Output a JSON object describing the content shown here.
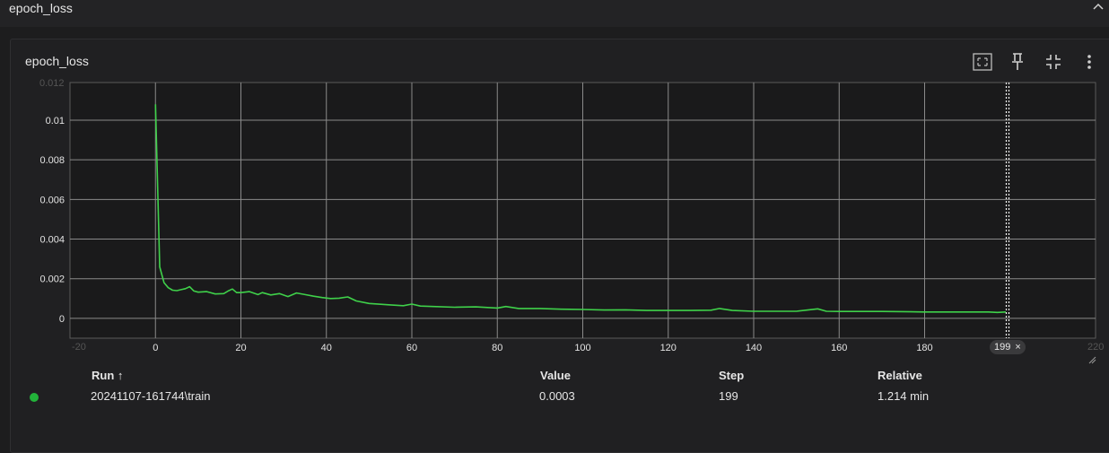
{
  "section": {
    "title": "epoch_loss"
  },
  "card": {
    "title": "epoch_loss"
  },
  "toolbar": {
    "icons": [
      "fit-domain-icon",
      "pin-icon",
      "collapse-card-icon",
      "more-vert-icon"
    ]
  },
  "colors": {
    "series": "#3fd14a",
    "run_dot": "#22b33a",
    "grid": "#8a8a8a",
    "plot_border": "#5a5a5a"
  },
  "chart_data": {
    "type": "line",
    "title": "",
    "xlabel": "",
    "ylabel": "",
    "xlim": [
      -20,
      220
    ],
    "ylim": [
      -0.001,
      0.0119
    ],
    "x_ticks": [
      "0",
      "20",
      "40",
      "60",
      "80",
      "100",
      "120",
      "140",
      "160",
      "180"
    ],
    "y_ticks": [
      "0",
      "0.002",
      "0.004",
      "0.006",
      "0.008",
      "0.01"
    ],
    "grid": true,
    "series": [
      {
        "name": "20241107-161744\\train",
        "points": [
          [
            0,
            0.0108
          ],
          [
            1,
            0.0026
          ],
          [
            2,
            0.0018
          ],
          [
            3,
            0.00155
          ],
          [
            4,
            0.00142
          ],
          [
            5,
            0.0014
          ],
          [
            6,
            0.00145
          ],
          [
            7,
            0.0015
          ],
          [
            8,
            0.0016
          ],
          [
            9,
            0.00138
          ],
          [
            10,
            0.00132
          ],
          [
            12,
            0.00135
          ],
          [
            14,
            0.00123
          ],
          [
            16,
            0.00125
          ],
          [
            17,
            0.00138
          ],
          [
            18,
            0.00148
          ],
          [
            19,
            0.0013
          ],
          [
            20,
            0.0013
          ],
          [
            22,
            0.00135
          ],
          [
            24,
            0.0012
          ],
          [
            25,
            0.0013
          ],
          [
            27,
            0.00118
          ],
          [
            29,
            0.00125
          ],
          [
            31,
            0.0011
          ],
          [
            33,
            0.00128
          ],
          [
            35,
            0.0012
          ],
          [
            37,
            0.00112
          ],
          [
            39,
            0.00105
          ],
          [
            41,
            0.001
          ],
          [
            43,
            0.00102
          ],
          [
            45,
            0.00108
          ],
          [
            47,
            0.00088
          ],
          [
            50,
            0.00075
          ],
          [
            55,
            0.00068
          ],
          [
            58,
            0.00064
          ],
          [
            60,
            0.00072
          ],
          [
            62,
            0.00062
          ],
          [
            65,
            0.0006
          ],
          [
            70,
            0.00056
          ],
          [
            75,
            0.00058
          ],
          [
            80,
            0.00052
          ],
          [
            82,
            0.0006
          ],
          [
            85,
            0.0005
          ],
          [
            90,
            0.0005
          ],
          [
            95,
            0.00046
          ],
          [
            100,
            0.00045
          ],
          [
            105,
            0.00042
          ],
          [
            110,
            0.00043
          ],
          [
            115,
            0.0004
          ],
          [
            120,
            0.0004
          ],
          [
            125,
            0.0004
          ],
          [
            130,
            0.00041
          ],
          [
            132,
            0.0005
          ],
          [
            135,
            0.0004
          ],
          [
            140,
            0.00036
          ],
          [
            145,
            0.00036
          ],
          [
            150,
            0.00036
          ],
          [
            155,
            0.00048
          ],
          [
            157,
            0.00036
          ],
          [
            160,
            0.00035
          ],
          [
            165,
            0.00035
          ],
          [
            170,
            0.00035
          ],
          [
            175,
            0.00034
          ],
          [
            180,
            0.00032
          ],
          [
            185,
            0.00032
          ],
          [
            190,
            0.00032
          ],
          [
            195,
            0.00032
          ],
          [
            197,
            0.0003
          ],
          [
            199,
            0.00032
          ]
        ]
      }
    ]
  },
  "cursor": {
    "step": 199,
    "chip_label": "199",
    "close_glyph": "×"
  },
  "table": {
    "headers": {
      "run": "Run ↑",
      "value": "Value",
      "step": "Step",
      "relative": "Relative"
    },
    "rows": [
      {
        "run": "20241107-161744\\train",
        "value": "0.0003",
        "step": "199",
        "relative": "1.214 min"
      }
    ]
  }
}
